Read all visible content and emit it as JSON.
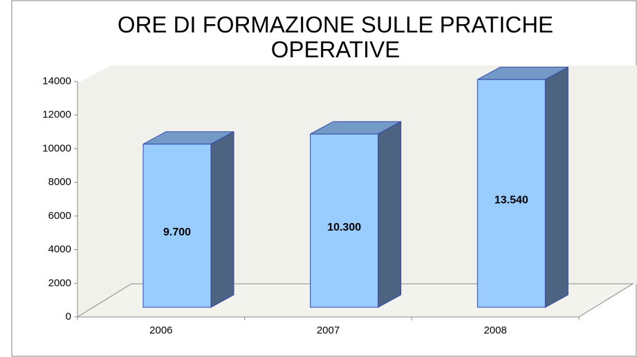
{
  "chart_data": {
    "type": "bar3d",
    "title": "ORE DI FORMAZIONE SULLE PRATICHE OPERATIVE",
    "categories": [
      "2006",
      "2007",
      "2008"
    ],
    "values": [
      9700,
      10300,
      13540
    ],
    "value_labels": [
      "9.700",
      "10.300",
      "13.540"
    ],
    "color": "#99ccff",
    "ylim": [
      0,
      14000
    ],
    "yticks": [
      0,
      2000,
      4000,
      6000,
      8000,
      10000,
      12000,
      14000
    ]
  }
}
